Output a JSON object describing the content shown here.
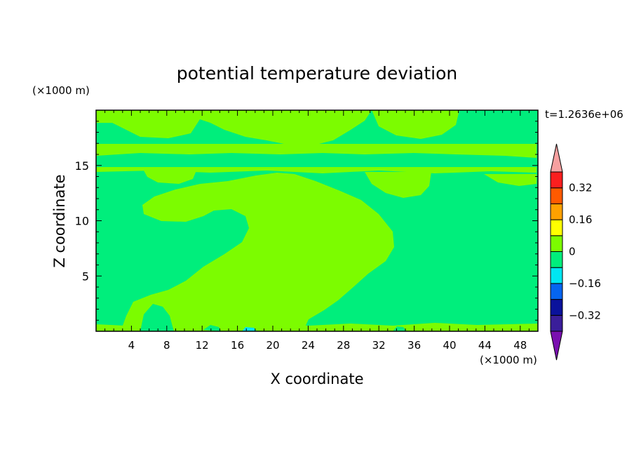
{
  "chart_data": {
    "type": "heatmap",
    "title": "potential temperature deviation",
    "xlabel": "X coordinate",
    "ylabel": "Z coordinate",
    "x_unit": "(×1000 m)",
    "y_unit": "(×1000 m)",
    "time_label": "t=1.2636e+06",
    "xlim": [
      0,
      50
    ],
    "ylim": [
      0,
      20
    ],
    "x_ticks": [
      4,
      8,
      12,
      16,
      20,
      24,
      28,
      32,
      36,
      40,
      44,
      48
    ],
    "y_ticks": [
      5,
      10,
      15
    ],
    "colorbar": {
      "levels": [
        -0.4,
        -0.32,
        -0.24,
        -0.16,
        -0.08,
        0,
        0.08,
        0.16,
        0.24,
        0.32,
        0.4
      ],
      "labeled_ticks": [
        {
          "value": 0.32,
          "label": "0.32"
        },
        {
          "value": 0.16,
          "label": "0.16"
        },
        {
          "value": 0,
          "label": "0"
        },
        {
          "value": -0.16,
          "label": "−0.16"
        },
        {
          "value": -0.32,
          "label": "−0.32"
        }
      ],
      "colors": [
        "#3A1E9A",
        "#0A129C",
        "#0565F0",
        "#00E6F2",
        "#00EE7C",
        "#7CFC00",
        "#FFFF00",
        "#FFA100",
        "#FF5A00",
        "#FA1F1F"
      ],
      "under_color": "#7A10B0",
      "over_color": "#F6A0A0"
    },
    "fields": {
      "background_range": [
        -0.08,
        0
      ],
      "background_color": "#00EE7C",
      "anomaly_range": [
        0,
        0.08
      ],
      "anomaly_color": "#7CFC00"
    }
  }
}
